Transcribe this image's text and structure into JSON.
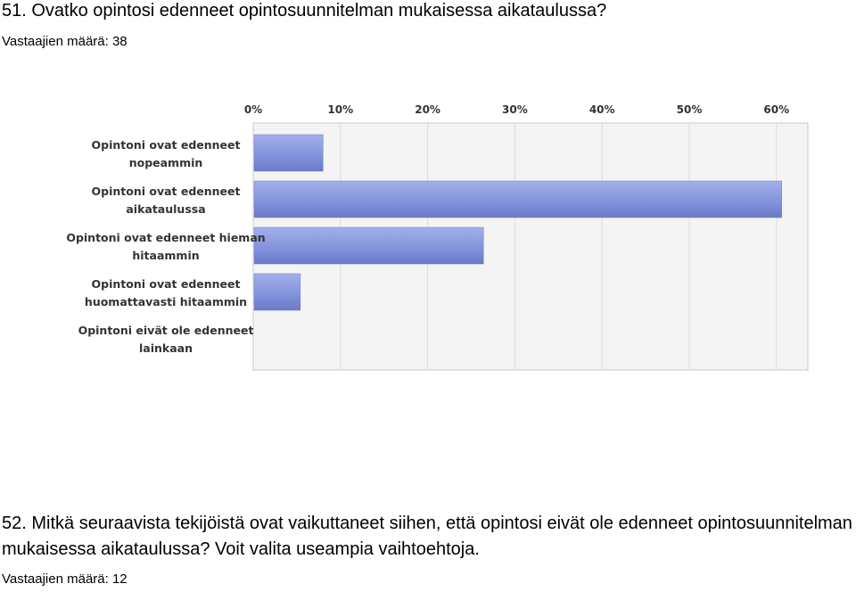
{
  "q51": {
    "title": "51. Ovatko opintosi edenneet opintosuunnitelman mukaisessa aikataulussa?",
    "respondents": "Vastaajien määrä: 38"
  },
  "q52": {
    "title": "52. Mitkä seuraavista tekijöistä ovat vaikuttaneet siihen, että opintosi eivät ole edenneet opintosuunnitelman mukaisessa aikataulussa? Voit valita useampia vaihtoehtoja.",
    "respondents": "Vastaajien määrä: 12"
  },
  "chart_data": {
    "type": "bar",
    "orientation": "horizontal",
    "categories": [
      [
        "Opintoni ovat edenneet",
        "nopeammin"
      ],
      [
        "Opintoni ovat edenneet",
        "aikataulussa"
      ],
      [
        "Opintoni ovat edenneet hieman",
        "hitaammin"
      ],
      [
        "Opintoni ovat edenneet",
        "huomattavasti hitaammin"
      ],
      [
        "Opintoni eivät ole edenneet",
        "lainkaan"
      ]
    ],
    "values": [
      7.9,
      60.5,
      26.3,
      5.3,
      0
    ],
    "xlim": [
      0,
      64
    ],
    "xticks": [
      0,
      10,
      20,
      30,
      40,
      50,
      60
    ],
    "tick_labels": [
      "0%",
      "10%",
      "20%",
      "30%",
      "40%",
      "50%",
      "60%"
    ],
    "axis_position": "top",
    "grid": true,
    "colors": {
      "bar": "#8493dc",
      "bar_light": "#a3b0ec",
      "bar_dark": "#6b7ac8",
      "plot_bg": "#f4f4f4",
      "grid": "#dcdcdc",
      "frame": "#c8c8c8"
    }
  }
}
